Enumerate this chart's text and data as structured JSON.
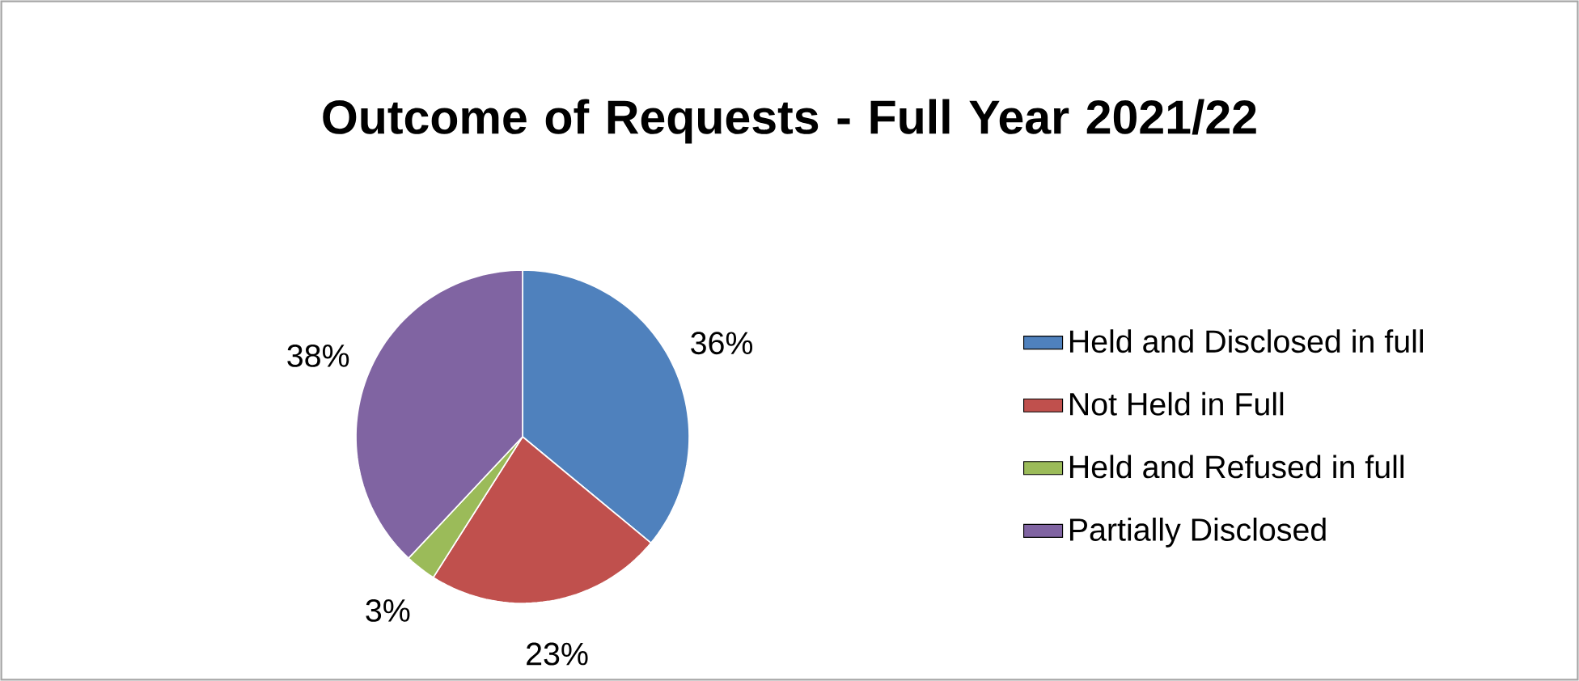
{
  "chart_data": {
    "type": "pie",
    "title": "Outcome of Requests - Full Year 2021/22",
    "categories": [
      "Held and Disclosed in full",
      "Not Held in Full",
      "Held and Refused in full",
      "Partially Disclosed"
    ],
    "values": [
      36,
      23,
      3,
      38
    ],
    "colors": [
      "#4f81bd",
      "#c0504d",
      "#9bbb59",
      "#8064a2"
    ],
    "value_labels": [
      "36%",
      "23%",
      "3%",
      "38%"
    ],
    "legend": "right"
  }
}
